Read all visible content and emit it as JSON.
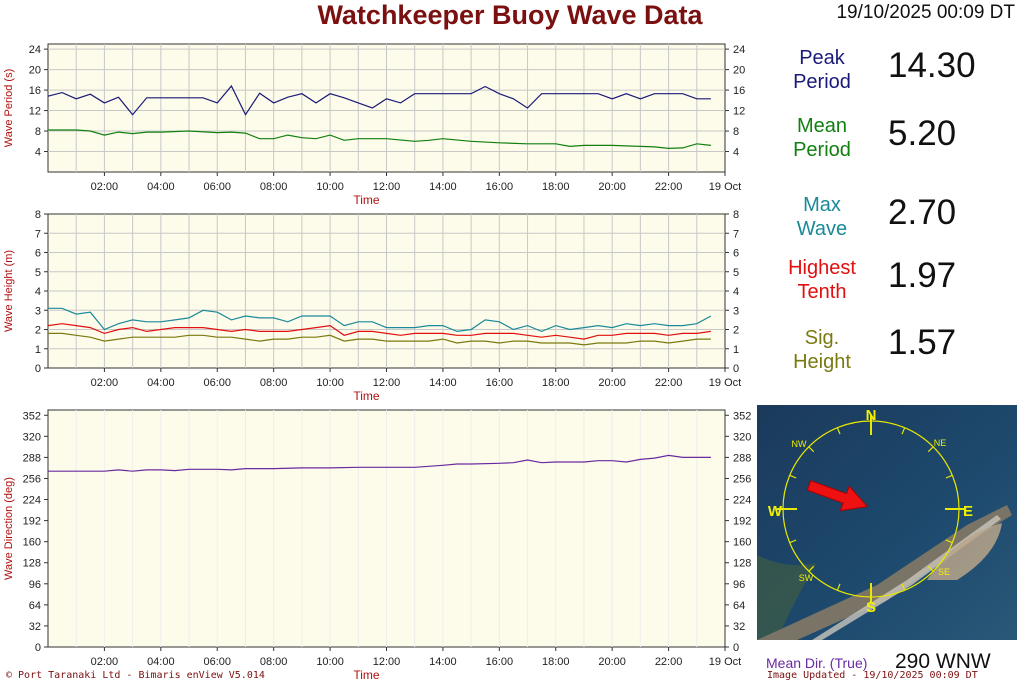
{
  "header": {
    "title": "Watchkeeper Buoy Wave Data",
    "datetime": "19/10/2025 00:09 DT"
  },
  "stats": [
    {
      "label1": "Peak",
      "label2": "Period",
      "value": "14.30",
      "color": "#1a1a7a"
    },
    {
      "label1": "Mean",
      "label2": "Period",
      "value": "5.20",
      "color": "#118011"
    },
    {
      "label1": "Max",
      "label2": "Wave",
      "value": "2.70",
      "color": "#1a8a9a"
    },
    {
      "label1": "Highest",
      "label2": "Tenth",
      "value": "1.97",
      "color": "#e01010"
    },
    {
      "label1": "Sig.",
      "label2": "Height",
      "value": "1.57",
      "color": "#7a7a10"
    }
  ],
  "compass": {
    "labels": {
      "n": "N",
      "s": "S",
      "e": "E",
      "w": "W",
      "ne": "NE",
      "nw": "NW",
      "se": "SE",
      "sw": "SW"
    },
    "mean_dir_label": "Mean Dir. (True)",
    "mean_dir_value": "290 WNW",
    "direction_deg": 290
  },
  "footer": {
    "left": "© Port Taranaki Ltd - Bimaris enView V5.014",
    "right": "Image Updated - 19/10/2025 00:09 DT"
  },
  "chart_data": [
    {
      "type": "line",
      "title": "",
      "xlabel": "Time",
      "ylabel": "Wave Period (s)",
      "xlim": [
        0,
        24
      ],
      "ylim": [
        0,
        25
      ],
      "yticks": [
        4,
        8,
        12,
        16,
        20,
        24
      ],
      "xtick_labels": [
        "02:00",
        "04:00",
        "06:00",
        "08:00",
        "10:00",
        "12:00",
        "14:00",
        "16:00",
        "18:00",
        "20:00",
        "22:00",
        "19 Oct"
      ],
      "grid": true,
      "series": [
        {
          "key": "peak",
          "color": "#1a1a7a",
          "x": [
            0,
            0.5,
            1,
            1.5,
            2,
            2.5,
            3,
            3.5,
            4,
            4.5,
            5,
            5.5,
            6,
            6.5,
            7,
            7.5,
            8,
            8.5,
            9,
            9.5,
            10,
            10.5,
            11,
            11.5,
            12,
            12.5,
            13,
            13.5,
            14,
            14.5,
            15,
            15.5,
            16,
            16.5,
            17,
            17.5,
            18,
            18.5,
            19,
            19.5,
            20,
            20.5,
            21,
            21.5,
            22,
            22.5,
            23,
            23.5
          ],
          "y": [
            14.8,
            15.5,
            14.3,
            15.2,
            13.5,
            14.6,
            11.2,
            14.5,
            14.5,
            14.5,
            14.5,
            14.5,
            13.5,
            16.8,
            11.2,
            15.4,
            13.5,
            14.6,
            15.3,
            13.5,
            15.3,
            14.5,
            13.5,
            12.5,
            14.3,
            13.5,
            15.3,
            15.3,
            15.3,
            15.3,
            15.3,
            16.7,
            15.3,
            14.3,
            12.5,
            15.3,
            15.3,
            15.3,
            15.3,
            15.3,
            14.3,
            15.3,
            14.3,
            15.3,
            15.3,
            15.3,
            14.3,
            14.3
          ]
        },
        {
          "key": "mean",
          "color": "#118011",
          "x": [
            0,
            1,
            1.5,
            2,
            2.5,
            3,
            3.5,
            4,
            5,
            6,
            6.5,
            7,
            7.5,
            8,
            8.5,
            9,
            9.5,
            10,
            10.5,
            11,
            12,
            13,
            13.5,
            14,
            15,
            16,
            17,
            18,
            18.5,
            19,
            20,
            21,
            21.5,
            22,
            22.5,
            23,
            23.5
          ],
          "y": [
            8.2,
            8.2,
            8.0,
            7.2,
            7.8,
            7.5,
            7.8,
            7.8,
            8.0,
            7.7,
            7.8,
            7.6,
            6.5,
            6.5,
            7.2,
            6.7,
            6.5,
            7.2,
            6.2,
            6.5,
            6.5,
            6.0,
            6.2,
            6.5,
            6.0,
            5.7,
            5.5,
            5.5,
            5.0,
            5.2,
            5.2,
            5.0,
            4.9,
            4.6,
            4.7,
            5.5,
            5.2
          ]
        }
      ]
    },
    {
      "type": "line",
      "title": "",
      "xlabel": "Time",
      "ylabel": "Wave Height (m)",
      "xlim": [
        0,
        24
      ],
      "ylim": [
        0,
        8
      ],
      "yticks": [
        0,
        1,
        2,
        3,
        4,
        5,
        6,
        7,
        8
      ],
      "xtick_labels": [
        "02:00",
        "04:00",
        "06:00",
        "08:00",
        "10:00",
        "12:00",
        "14:00",
        "16:00",
        "18:00",
        "20:00",
        "22:00",
        "19 Oct"
      ],
      "grid": true,
      "series": [
        {
          "key": "max",
          "color": "#1a8a9a",
          "x": [
            0,
            0.5,
            1,
            1.5,
            2,
            2.5,
            3,
            3.5,
            4,
            4.5,
            5,
            5.5,
            6,
            6.5,
            7,
            7.5,
            8,
            8.5,
            9,
            9.5,
            10,
            10.5,
            11,
            11.5,
            12,
            12.5,
            13,
            13.5,
            14,
            14.5,
            15,
            15.5,
            16,
            16.5,
            17,
            17.5,
            18,
            18.5,
            19,
            19.5,
            20,
            20.5,
            21,
            21.5,
            22,
            22.5,
            23,
            23.5
          ],
          "y": [
            3.1,
            3.1,
            2.8,
            2.9,
            2.0,
            2.3,
            2.5,
            2.4,
            2.4,
            2.5,
            2.6,
            3.0,
            2.9,
            2.5,
            2.7,
            2.6,
            2.6,
            2.4,
            2.7,
            2.7,
            2.7,
            2.2,
            2.4,
            2.4,
            2.1,
            2.1,
            2.1,
            2.2,
            2.2,
            1.9,
            2.0,
            2.5,
            2.4,
            2.0,
            2.2,
            1.9,
            2.2,
            2.0,
            2.1,
            2.2,
            2.1,
            2.3,
            2.2,
            2.3,
            2.2,
            2.2,
            2.3,
            2.7
          ]
        },
        {
          "key": "tenth",
          "color": "#e01010",
          "x": [
            0,
            0.5,
            1,
            1.5,
            2,
            2.5,
            3,
            3.5,
            4,
            4.5,
            5,
            5.5,
            6,
            6.5,
            7,
            7.5,
            8,
            8.5,
            9,
            9.5,
            10,
            10.5,
            11,
            11.5,
            12,
            12.5,
            13,
            13.5,
            14,
            14.5,
            15,
            15.5,
            16,
            16.5,
            17,
            17.5,
            18,
            18.5,
            19,
            19.5,
            20,
            20.5,
            21,
            21.5,
            22,
            22.5,
            23,
            23.5
          ],
          "y": [
            2.2,
            2.3,
            2.2,
            2.1,
            1.8,
            2.0,
            2.1,
            1.9,
            2.0,
            2.1,
            2.1,
            2.1,
            2.0,
            1.9,
            2.0,
            1.9,
            1.9,
            1.9,
            2.0,
            2.1,
            2.2,
            1.7,
            1.9,
            1.9,
            1.8,
            1.7,
            1.8,
            1.8,
            1.8,
            1.7,
            1.7,
            1.8,
            1.8,
            1.8,
            1.7,
            1.6,
            1.7,
            1.6,
            1.5,
            1.7,
            1.7,
            1.8,
            1.8,
            1.8,
            1.7,
            1.8,
            1.8,
            1.9
          ]
        },
        {
          "key": "sig",
          "color": "#7a7a10",
          "x": [
            0,
            0.5,
            1,
            1.5,
            2,
            2.5,
            3,
            3.5,
            4,
            4.5,
            5,
            5.5,
            6,
            6.5,
            7,
            7.5,
            8,
            8.5,
            9,
            9.5,
            10,
            10.5,
            11,
            11.5,
            12,
            12.5,
            13,
            13.5,
            14,
            14.5,
            15,
            15.5,
            16,
            16.5,
            17,
            17.5,
            18,
            18.5,
            19,
            19.5,
            20,
            20.5,
            21,
            21.5,
            22,
            22.5,
            23,
            23.5
          ],
          "y": [
            1.8,
            1.8,
            1.7,
            1.6,
            1.4,
            1.5,
            1.6,
            1.6,
            1.6,
            1.6,
            1.7,
            1.7,
            1.6,
            1.6,
            1.5,
            1.4,
            1.5,
            1.5,
            1.6,
            1.6,
            1.7,
            1.4,
            1.5,
            1.5,
            1.4,
            1.4,
            1.4,
            1.4,
            1.5,
            1.3,
            1.4,
            1.4,
            1.3,
            1.4,
            1.4,
            1.3,
            1.3,
            1.3,
            1.2,
            1.3,
            1.3,
            1.3,
            1.4,
            1.4,
            1.3,
            1.4,
            1.5,
            1.5
          ]
        }
      ]
    },
    {
      "type": "line",
      "title": "",
      "xlabel": "Time",
      "ylabel": "Wave Direction (deg)",
      "xlim": [
        0,
        24
      ],
      "ylim": [
        0,
        360
      ],
      "yticks": [
        0,
        32,
        64,
        96,
        128,
        160,
        192,
        224,
        256,
        288,
        320,
        352
      ],
      "xtick_labels": [
        "02:00",
        "04:00",
        "06:00",
        "08:00",
        "10:00",
        "12:00",
        "14:00",
        "16:00",
        "18:00",
        "20:00",
        "22:00",
        "19 Oct"
      ],
      "grid": false,
      "series": [
        {
          "key": "dir",
          "color": "#6a2aa0",
          "x": [
            0,
            1,
            2,
            2.5,
            3,
            3.5,
            4,
            4.5,
            5,
            6,
            6.5,
            7,
            8,
            9,
            10,
            11,
            12,
            13,
            14,
            14.5,
            15,
            16,
            16.5,
            17,
            17.5,
            18,
            19,
            19.5,
            20,
            20.5,
            21,
            21.5,
            22,
            22.5,
            23,
            23.5
          ],
          "y": [
            267,
            267,
            267,
            269,
            267,
            269,
            269,
            268,
            270,
            270,
            269,
            271,
            271,
            272,
            272,
            273,
            273,
            273,
            276,
            278,
            278,
            279,
            280,
            284,
            280,
            281,
            281,
            283,
            283,
            281,
            285,
            287,
            291,
            288,
            288,
            288
          ]
        }
      ]
    }
  ]
}
